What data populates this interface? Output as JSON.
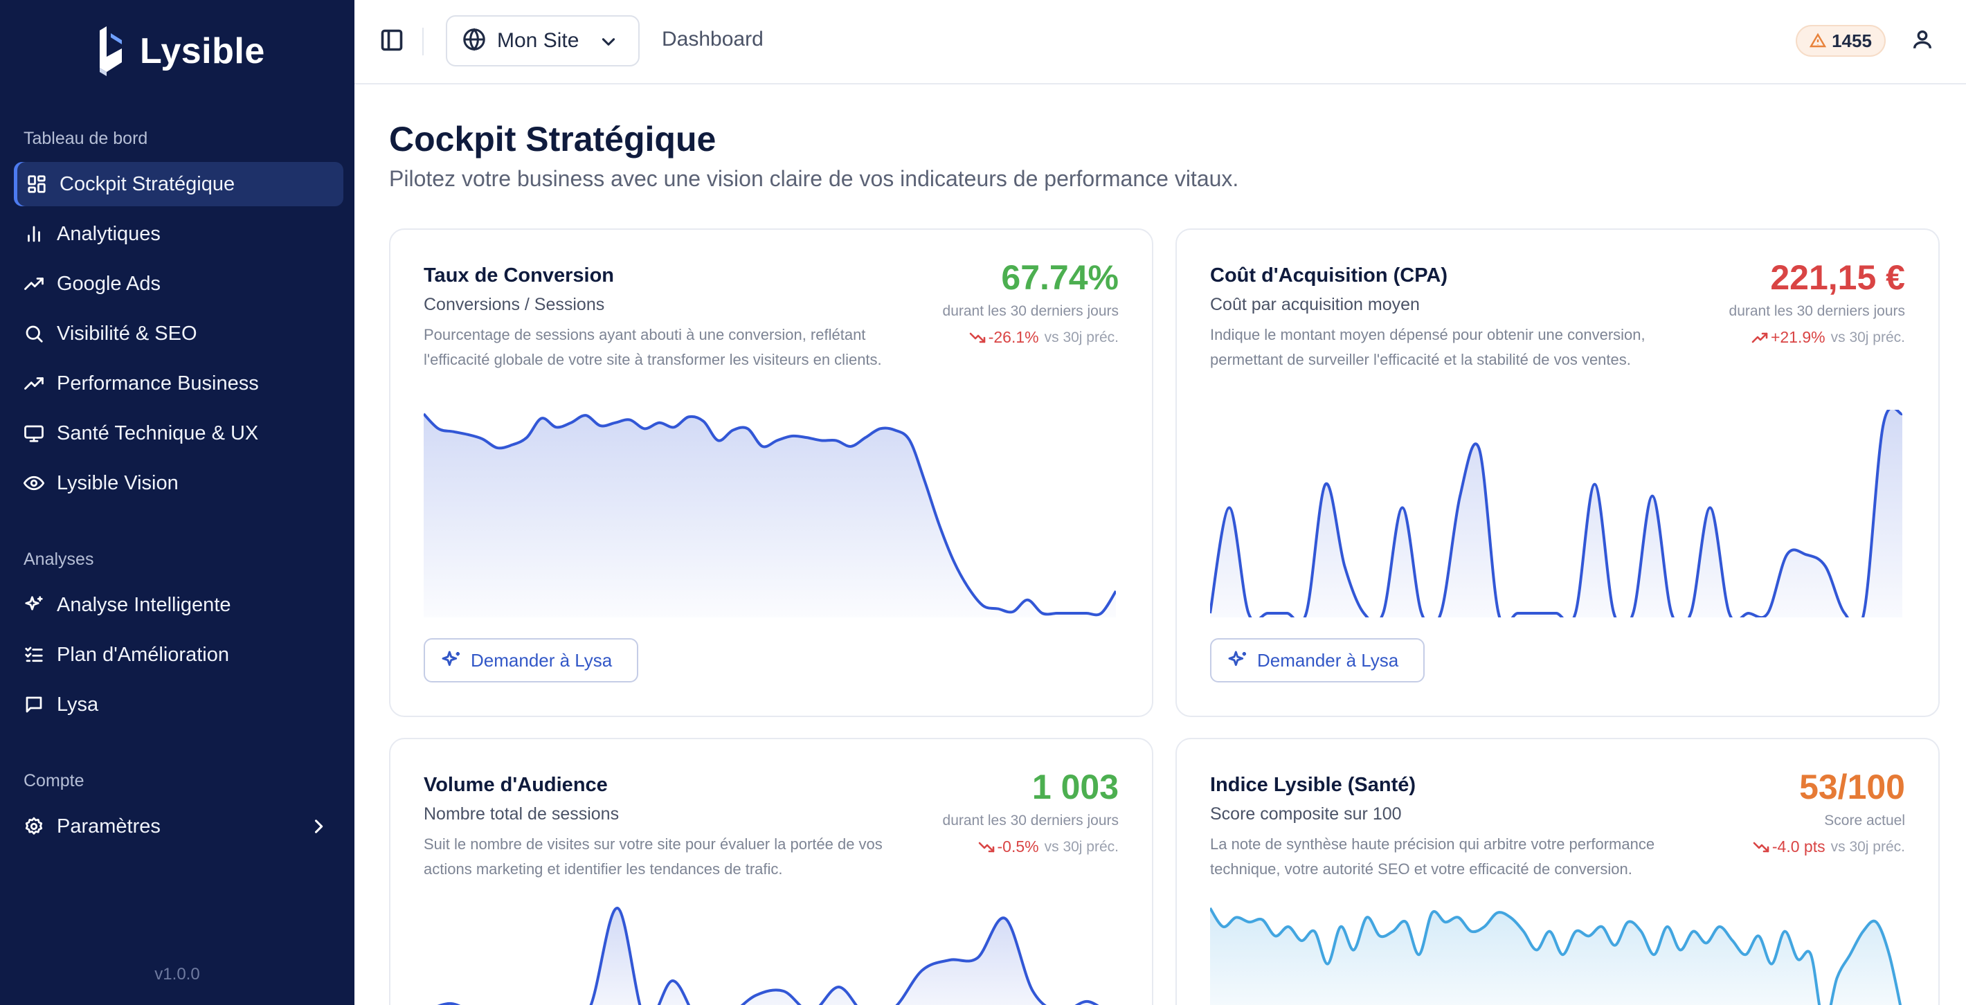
{
  "app": {
    "name": "Lysible",
    "version": "v1.0.0"
  },
  "sidebar": {
    "sections": [
      {
        "title": "Tableau de bord",
        "items": [
          {
            "label": "Cockpit Stratégique",
            "icon": "dashboard-grid-icon",
            "active": true
          },
          {
            "label": "Analytiques",
            "icon": "bar-chart-icon"
          },
          {
            "label": "Google Ads",
            "icon": "trending-up-icon"
          },
          {
            "label": "Visibilité & SEO",
            "icon": "search-icon"
          },
          {
            "label": "Performance Business",
            "icon": "trending-up-icon"
          },
          {
            "label": "Santé Technique & UX",
            "icon": "monitor-icon"
          },
          {
            "label": "Lysible Vision",
            "icon": "eye-icon"
          }
        ]
      },
      {
        "title": "Analyses",
        "items": [
          {
            "label": "Analyse Intelligente",
            "icon": "sparkles-icon"
          },
          {
            "label": "Plan d'Amélioration",
            "icon": "checklist-icon"
          },
          {
            "label": "Lysa",
            "icon": "message-icon"
          }
        ]
      },
      {
        "title": "Compte",
        "items": [
          {
            "label": "Paramètres",
            "icon": "gear-icon"
          }
        ]
      }
    ]
  },
  "topbar": {
    "site": "Mon Site",
    "breadcrumb": "Dashboard",
    "alerts_count": "1455"
  },
  "page": {
    "title": "Cockpit Stratégique",
    "subtitle": "Pilotez votre business avec une vision claire de vos indicateurs de performance vitaux."
  },
  "colors": {
    "sidebar_bg": "#0e1b47",
    "positive": "#4caf50",
    "negative": "#d94444",
    "warning": "#e67a35",
    "chart_blue": "#3257d6",
    "chart_sky": "#42a5e0"
  },
  "cards": [
    {
      "title": "Taux de Conversion",
      "subtitle": "Conversions / Sessions",
      "description": "Pourcentage de sessions ayant abouti à une conversion, reflétant l'efficacité globale de votre site à transformer les visiteurs en clients.",
      "value": "67.74%",
      "value_color": "#4caf50",
      "period": "durant les 30 derniers jours",
      "trend": "-26.1%",
      "trend_direction": "down",
      "trend_compare": "vs 30j préc.",
      "button": "Demander à Lysa",
      "chart_data": {
        "type": "area",
        "color": "#3257d6",
        "values": [
          90,
          80,
          78,
          76,
          73,
          67,
          69,
          74,
          87,
          81,
          84,
          89,
          82,
          84,
          86,
          80,
          84,
          81,
          88,
          85,
          72,
          79,
          80,
          68,
          72,
          75,
          74,
          72,
          72,
          68,
          74,
          80,
          79,
          72,
          45,
          15,
          -10,
          -28,
          -40,
          -42,
          -44,
          -36,
          -45,
          -45,
          -45,
          -45,
          -45,
          -30
        ]
      }
    },
    {
      "title": "Coût d'Acquisition (CPA)",
      "subtitle": "Coût par acquisition moyen",
      "description": "Indique le montant moyen dépensé pour obtenir une conversion, permettant de surveiller l'efficacité et la stabilité de vos ventes.",
      "value": "221,15 €",
      "value_color": "#d94444",
      "period": "durant les 30 derniers jours",
      "trend": "+21.9%",
      "trend_direction": "up",
      "trend_compare": "vs 30j préc.",
      "button": "Demander à Lysa",
      "chart_data": {
        "type": "area",
        "color": "#3257d6",
        "values": [
          0,
          45,
          0,
          0,
          0,
          0,
          55,
          20,
          0,
          0,
          45,
          0,
          0,
          50,
          70,
          0,
          0,
          0,
          0,
          0,
          55,
          0,
          0,
          50,
          0,
          0,
          45,
          0,
          0,
          0,
          25,
          25,
          20,
          0,
          0,
          80,
          85
        ]
      }
    },
    {
      "title": "Volume d'Audience",
      "subtitle": "Nombre total de sessions",
      "description": "Suit le nombre de visites sur votre site pour évaluer la portée de vos actions marketing et identifier les tendances de trafic.",
      "value": "1 003",
      "value_color": "#4caf50",
      "period": "durant les 30 derniers jours",
      "trend": "-0.5%",
      "trend_direction": "down",
      "trend_compare": "vs 30j préc.",
      "button": "Demander à Lysa",
      "chart_data": {
        "type": "area",
        "color": "#3257d6",
        "values": [
          10,
          14,
          8,
          6,
          10,
          4,
          12,
          60,
          6,
          25,
          4,
          8,
          18,
          20,
          10,
          22,
          8,
          12,
          30,
          35,
          36,
          55,
          20,
          10,
          15,
          6
        ]
      }
    },
    {
      "title": "Indice Lysible (Santé)",
      "subtitle": "Score composite sur 100",
      "description": "La note de synthèse haute précision qui arbitre votre performance technique, votre autorité SEO et votre efficacité de conversion.",
      "value": "53/100",
      "value_color": "#e67a35",
      "period": "Score actuel",
      "trend": "-4.0 pts",
      "trend_direction": "down",
      "trend_compare": "vs 30j préc.",
      "button": "Demander à Lysa",
      "chart_data": {
        "type": "area",
        "color": "#42a5e0",
        "values": [
          90,
          82,
          86,
          84,
          85,
          78,
          82,
          76,
          80,
          66,
          82,
          72,
          86,
          78,
          80,
          84,
          70,
          88,
          84,
          86,
          80,
          82,
          88,
          86,
          80,
          72,
          80,
          70,
          80,
          78,
          82,
          74,
          84,
          80,
          70,
          82,
          72,
          80,
          75,
          82,
          76,
          70,
          78,
          66,
          80,
          68,
          70,
          40,
          60,
          70,
          80,
          84,
          70,
          44
        ]
      }
    }
  ]
}
